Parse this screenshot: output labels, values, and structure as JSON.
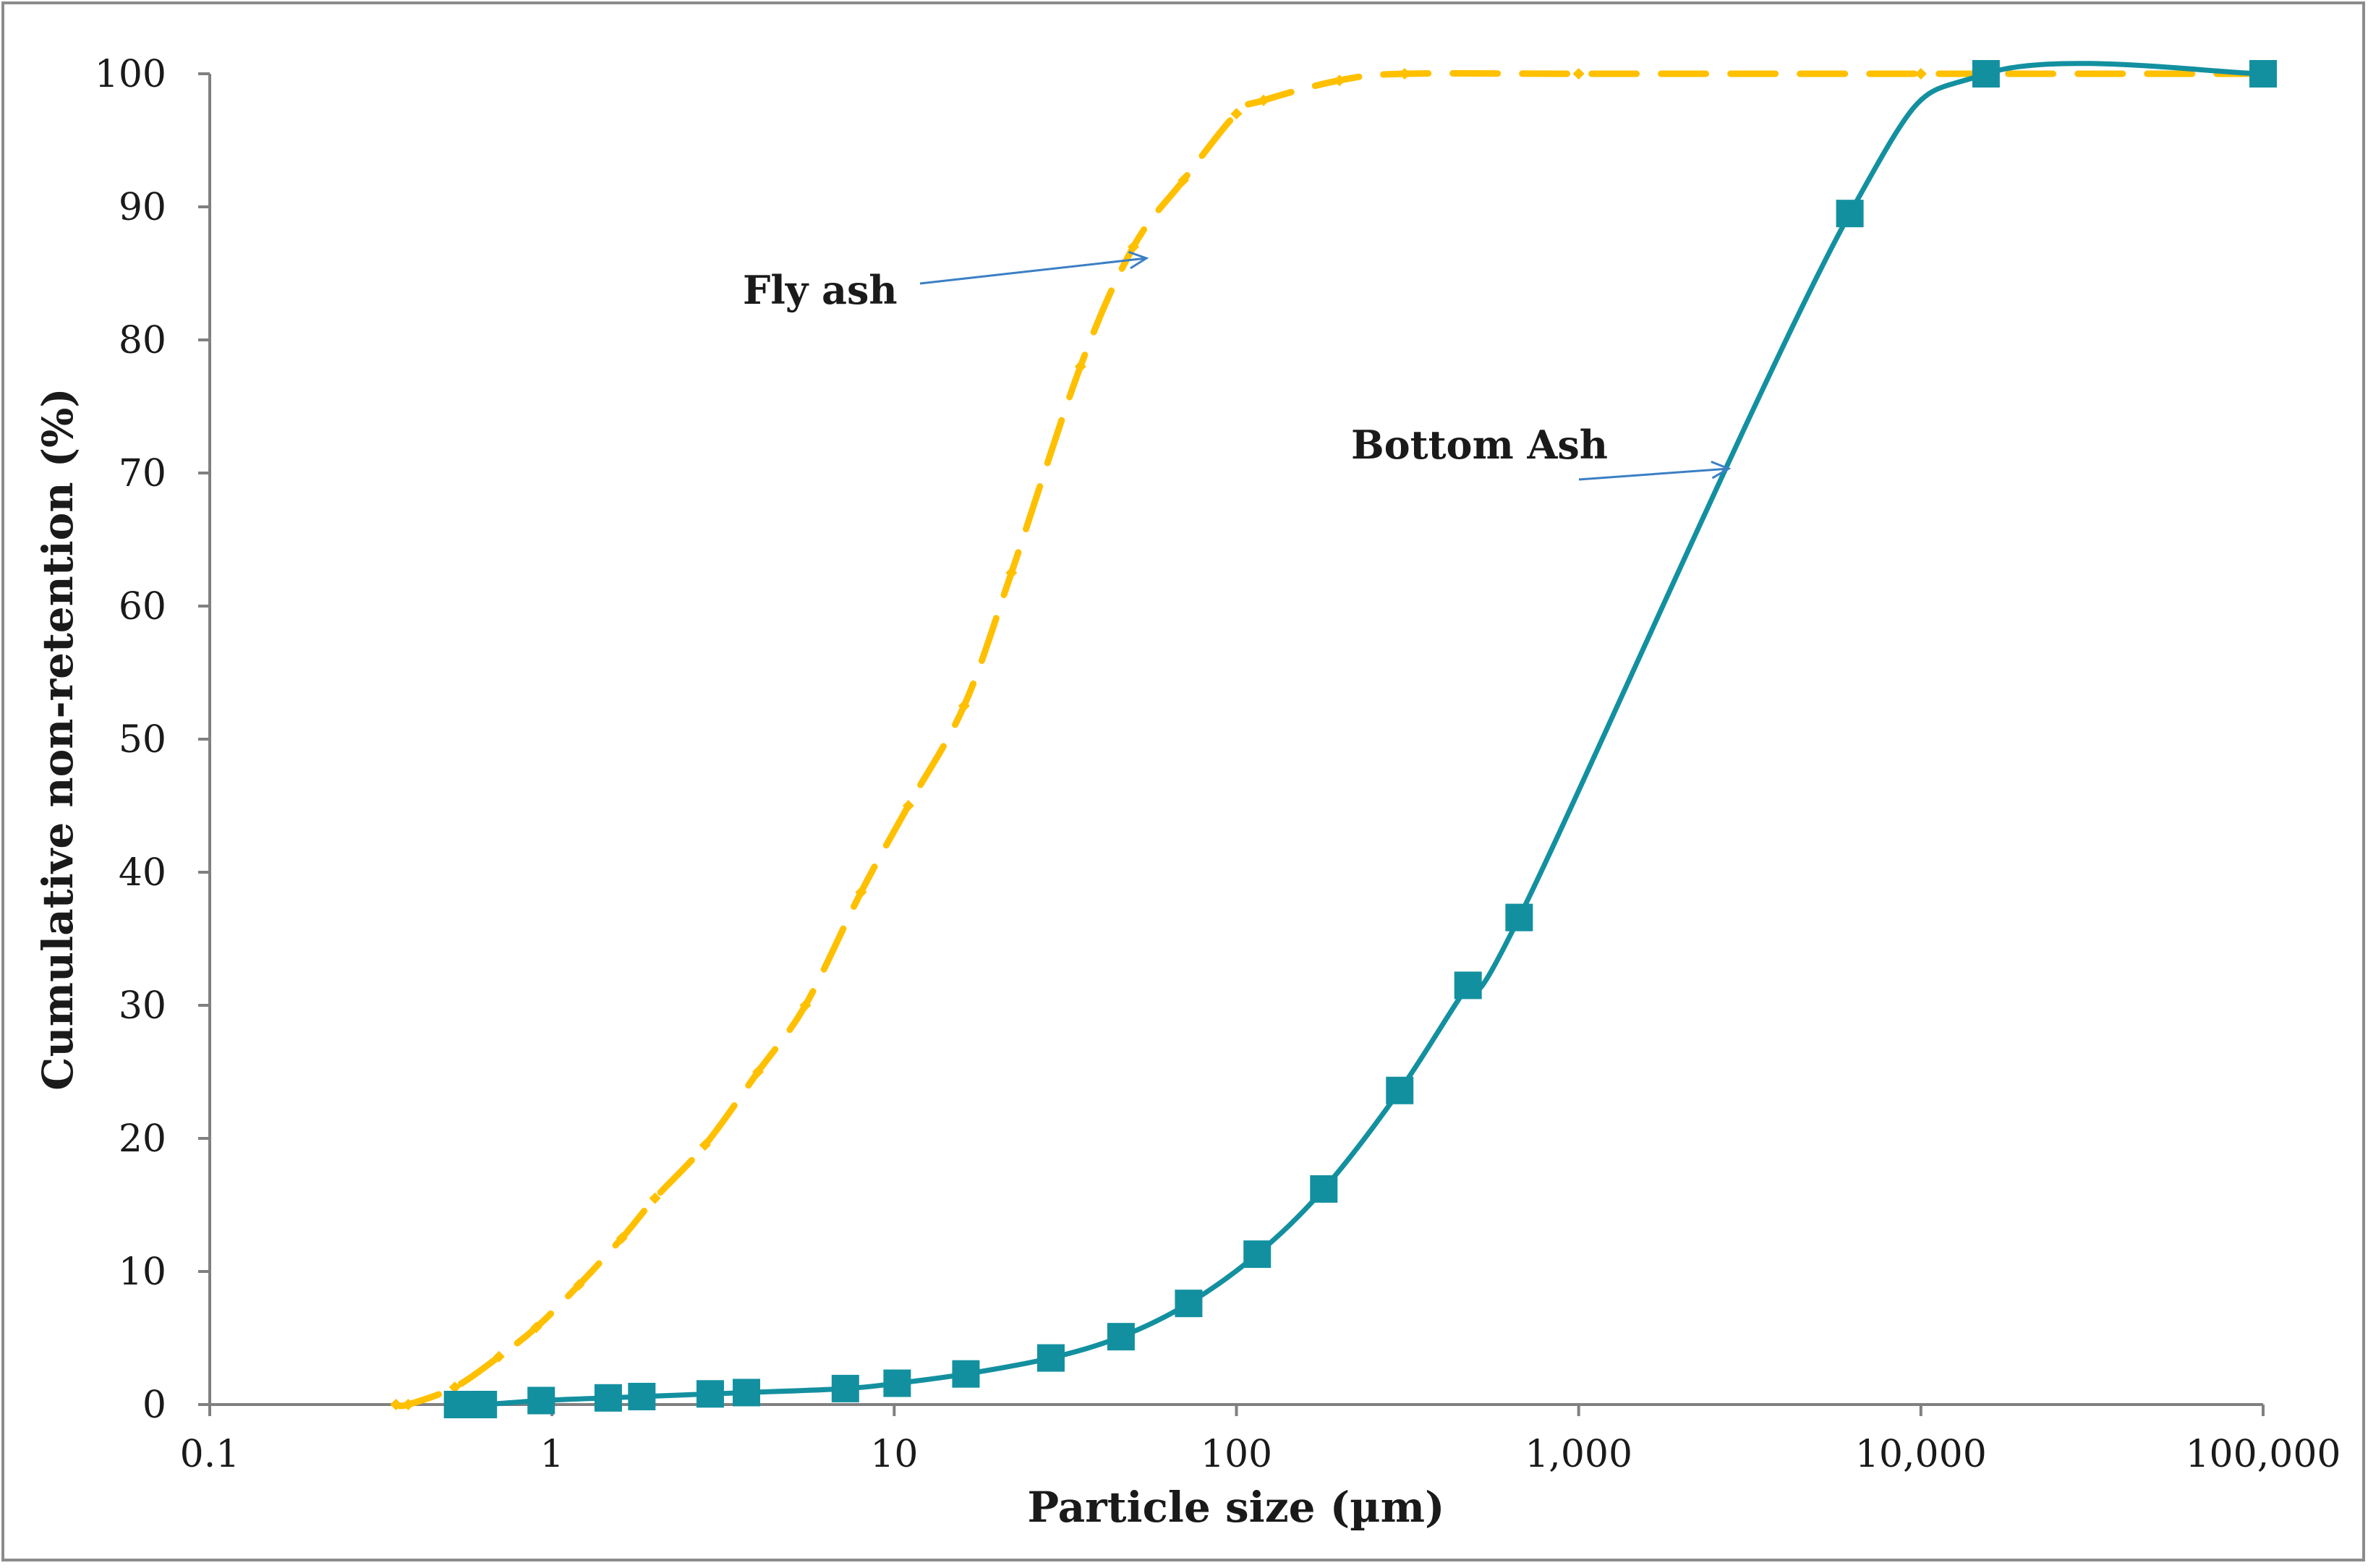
{
  "chart_data": {
    "type": "line",
    "title": "",
    "xlabel": "Particle size (µm)",
    "ylabel": "Cumulative non-retention (%)",
    "xscale": "log",
    "xlim": [
      0.1,
      100000
    ],
    "ylim": [
      0,
      100
    ],
    "grid": false,
    "legend": "none",
    "x_ticks": [
      {
        "value": 0.1,
        "label": "0.1"
      },
      {
        "value": 1,
        "label": "1"
      },
      {
        "value": 10,
        "label": "10"
      },
      {
        "value": 100,
        "label": "100"
      },
      {
        "value": 1000,
        "label": "1,000"
      },
      {
        "value": 10000,
        "label": "10,000"
      },
      {
        "value": 100000,
        "label": "100,000"
      }
    ],
    "y_ticks": [
      {
        "value": 0,
        "label": "0"
      },
      {
        "value": 10,
        "label": "10"
      },
      {
        "value": 20,
        "label": "20"
      },
      {
        "value": 30,
        "label": "30"
      },
      {
        "value": 40,
        "label": "40"
      },
      {
        "value": 50,
        "label": "50"
      },
      {
        "value": 60,
        "label": "60"
      },
      {
        "value": 70,
        "label": "70"
      },
      {
        "value": 80,
        "label": "80"
      },
      {
        "value": 90,
        "label": "90"
      },
      {
        "value": 100,
        "label": "100"
      }
    ],
    "series": [
      {
        "name": "Fly ash",
        "color": "#ffc000",
        "style": "dashed",
        "marker": "diamond",
        "x": [
          0.35,
          0.38,
          0.52,
          0.7,
          0.9,
          1.2,
          1.6,
          2.0,
          2.8,
          4.0,
          5.5,
          8.0,
          11,
          16,
          22,
          35,
          50,
          70,
          100,
          120,
          200,
          310,
          1000,
          10000,
          100000
        ],
        "y": [
          0,
          0,
          1.3,
          3.6,
          5.8,
          9,
          12.5,
          15.5,
          19.5,
          25,
          30,
          38.5,
          45,
          52.5,
          62.5,
          78,
          87,
          92,
          97,
          98,
          99.5,
          100,
          100,
          100,
          100
        ]
      },
      {
        "name": "Bottom Ash",
        "color": "#1390a0",
        "style": "solid",
        "marker": "square",
        "x": [
          0.53,
          0.63,
          0.93,
          1.46,
          1.83,
          2.9,
          3.7,
          7.2,
          10.2,
          16.2,
          28.7,
          46,
          72.5,
          115,
          180,
          300,
          475,
          670,
          6200,
          15500,
          100000
        ],
        "y": [
          0,
          0,
          0.3,
          0.5,
          0.6,
          0.8,
          0.9,
          1.2,
          1.6,
          2.3,
          3.5,
          5.1,
          7.6,
          11.3,
          16.2,
          23.6,
          31.5,
          36.6,
          89.5,
          100,
          100
        ]
      }
    ],
    "annotations": [
      {
        "text": "Fly ash",
        "target_series": "Fly ash"
      },
      {
        "text": "Bottom Ash",
        "target_series": "Bottom Ash"
      }
    ]
  }
}
